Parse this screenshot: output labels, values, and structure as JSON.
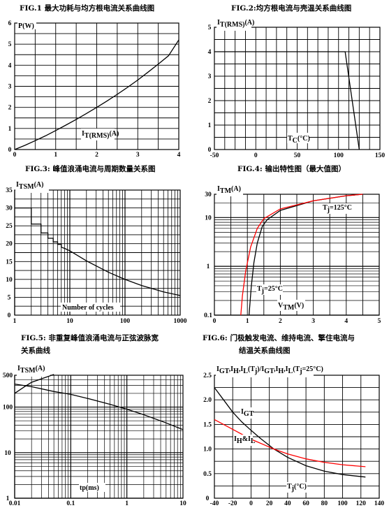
{
  "chart_data": [
    {
      "id": "fig1",
      "type": "line",
      "title": "FIG.1  最大功耗与均方根电流关系曲线图",
      "ylabel_main": "P(W)",
      "xlabel_main": "I",
      "xlabel_sub": "T(RMS)",
      "xlabel_tail": "(A)",
      "xlim": [
        0,
        4
      ],
      "ylim": [
        0,
        6
      ],
      "xticks": [
        "0",
        "1",
        "2",
        "3",
        "4"
      ],
      "yticks": [
        "0",
        "1",
        "2",
        "3",
        "4",
        "5",
        "6"
      ],
      "series": [
        {
          "color": "#000000",
          "x": [
            0,
            0.25,
            0.5,
            0.75,
            1,
            1.25,
            1.5,
            1.75,
            2,
            2.25,
            2.5,
            2.75,
            3,
            3.25,
            3.5,
            3.75,
            4
          ],
          "y": [
            0,
            0.2,
            0.42,
            0.65,
            0.9,
            1.16,
            1.43,
            1.71,
            2.0,
            2.3,
            2.62,
            2.95,
            3.3,
            3.67,
            4.05,
            4.45,
            5.2
          ]
        }
      ]
    },
    {
      "id": "fig2",
      "type": "line",
      "title": "FIG.2:均方根电流与壳温关系曲线图",
      "ylabel_main": "I",
      "ylabel_sub": "T(RMS)",
      "ylabel_tail": "(A)",
      "xlabel_main": "T",
      "xlabel_sub": "C",
      "xlabel_tail": "(°C)",
      "xlim": [
        -50,
        150
      ],
      "ylim": [
        0,
        5
      ],
      "xticks": [
        "-50",
        "0",
        "50",
        "100",
        "150"
      ],
      "yticks": [
        "0",
        "1",
        "2",
        "3",
        "4",
        "5"
      ],
      "series": [
        {
          "color": "#000000",
          "x": [
            -50,
            108,
            125
          ],
          "y": [
            4,
            4,
            0
          ]
        }
      ]
    },
    {
      "id": "fig3",
      "type": "line",
      "title": "FIG.3:  峰值浪涌电流与周期数量关系图",
      "ylabel_main": "I",
      "ylabel_sub": "TSM",
      "ylabel_tail": "(A)",
      "xlabel": "Number of cycles",
      "xscale": "log",
      "xlim": [
        1,
        1000
      ],
      "ylim": [
        0,
        35
      ],
      "xticks": [
        "1",
        "10",
        "100",
        "1000"
      ],
      "yticks": [
        "0",
        "5",
        "10",
        "15",
        "20",
        "25",
        "30",
        "35"
      ],
      "series": [
        {
          "color": "#000000",
          "x": [
            1,
            2,
            2,
            3,
            3,
            4,
            4,
            5,
            5,
            6,
            6,
            7,
            7,
            8,
            10,
            20,
            50,
            100,
            200,
            500,
            1000
          ],
          "y": [
            30,
            30,
            25.5,
            25.5,
            23,
            23,
            21.5,
            21.5,
            20.5,
            20.5,
            19.8,
            19.8,
            19,
            18.7,
            18,
            15.2,
            12,
            10,
            8.3,
            6.5,
            5.5
          ]
        }
      ]
    },
    {
      "id": "fig4",
      "type": "line",
      "title": "FIG.4:  输出特性图（最大值图）",
      "ylabel_main": "I",
      "ylabel_sub": "TM",
      "ylabel_tail": "(A)",
      "xlabel_main": "V",
      "xlabel_sub": "TM",
      "xlabel_tail": "(V)",
      "yscale": "log",
      "xlim": [
        0,
        5
      ],
      "ylim": [
        0.1,
        30
      ],
      "xticks": [
        "0",
        "1",
        "2",
        "3",
        "4",
        "5"
      ],
      "yticks": [
        "0.1",
        "1",
        "10",
        "30"
      ],
      "annotations": [
        {
          "main": "T",
          "sub": "j",
          "tail": "=125°C"
        },
        {
          "main": "T",
          "sub": "j",
          "tail": "=25°C"
        }
      ],
      "series": [
        {
          "name": "Tj=125°C",
          "color": "#ff0000",
          "x": [
            0.8,
            0.85,
            0.95,
            1.1,
            1.3,
            1.5,
            2.0,
            3.0,
            4.0,
            4.5
          ],
          "y": [
            0.1,
            0.25,
            0.8,
            2.5,
            6.0,
            9.5,
            15,
            22,
            28,
            30
          ]
        },
        {
          "name": "Tj=25°C",
          "color": "#000000",
          "x": [
            1.05,
            1.12,
            1.2,
            1.3,
            1.45,
            1.6,
            2.0,
            3.0,
            4.0,
            4.5
          ],
          "y": [
            0.1,
            0.4,
            1.2,
            3.0,
            6.5,
            9.0,
            14,
            22,
            28,
            30
          ]
        }
      ]
    },
    {
      "id": "fig5",
      "type": "line",
      "title_line1": "FIG.5:  非重复峰值浪涌电流与正弦波脉宽",
      "title_line2": "关系曲线",
      "ylabel_main": "I",
      "ylabel_sub": "TSM",
      "ylabel_tail": "(A)",
      "xlabel": "tp(ms)",
      "xscale": "log",
      "yscale": "log",
      "xlim": [
        0.01,
        10
      ],
      "ylim": [
        1,
        500
      ],
      "xticks": [
        "0.01",
        "0.1",
        "1",
        "10"
      ],
      "yticks": [
        "1",
        "10",
        "100",
        "500"
      ],
      "series": [
        {
          "color": "#000000",
          "x": [
            0.01,
            0.015,
            0.02,
            0.05
          ],
          "y": [
            200,
            280,
            350,
            520
          ]
        },
        {
          "color": "#000000",
          "x": [
            0.01,
            0.02,
            0.05,
            0.1,
            0.2,
            0.5,
            1,
            2,
            5,
            10
          ],
          "y": [
            320,
            280,
            220,
            190,
            155,
            115,
            90,
            68,
            45,
            32
          ]
        }
      ]
    },
    {
      "id": "fig6",
      "type": "line",
      "title_line1": "FIG.6:  门极触发电流、维持电流、擎住电流与",
      "title_line2": "结温关系曲线图",
      "ylabel": "I_GT,I_H,I_L(T_j)/I_GT,I_H,I_L(T_j=25°C)",
      "xlabel_main": "T",
      "xlabel_sub": "j",
      "xlabel_tail": "(°C)",
      "xlim": [
        -40,
        140
      ],
      "ylim": [
        0,
        2.5
      ],
      "xticks": [
        "-40",
        "-20",
        "0",
        "20",
        "40",
        "60",
        "80",
        "100",
        "120",
        "140"
      ],
      "yticks": [
        "0",
        "0.5",
        "1.0",
        "1.5",
        "2.0",
        "2.5"
      ],
      "annotations": [
        {
          "main": "I",
          "sub": "GT",
          "tail": ""
        },
        {
          "main": "I",
          "sub": "H",
          "tail": "&I",
          "sub2": "L"
        }
      ],
      "series": [
        {
          "name": "IGT",
          "color": "#000000",
          "x": [
            -40,
            -30,
            -20,
            -10,
            0,
            10,
            25,
            40,
            60,
            80,
            100,
            125
          ],
          "y": [
            2.25,
            2.0,
            1.75,
            1.55,
            1.38,
            1.22,
            1.0,
            0.83,
            0.66,
            0.55,
            0.48,
            0.43
          ]
        },
        {
          "name": "IH&IL",
          "color": "#ff0000",
          "x": [
            -40,
            -20,
            0,
            25,
            40,
            60,
            80,
            100,
            125
          ],
          "y": [
            1.6,
            1.4,
            1.2,
            1.0,
            0.9,
            0.8,
            0.73,
            0.68,
            0.64
          ]
        }
      ]
    }
  ]
}
